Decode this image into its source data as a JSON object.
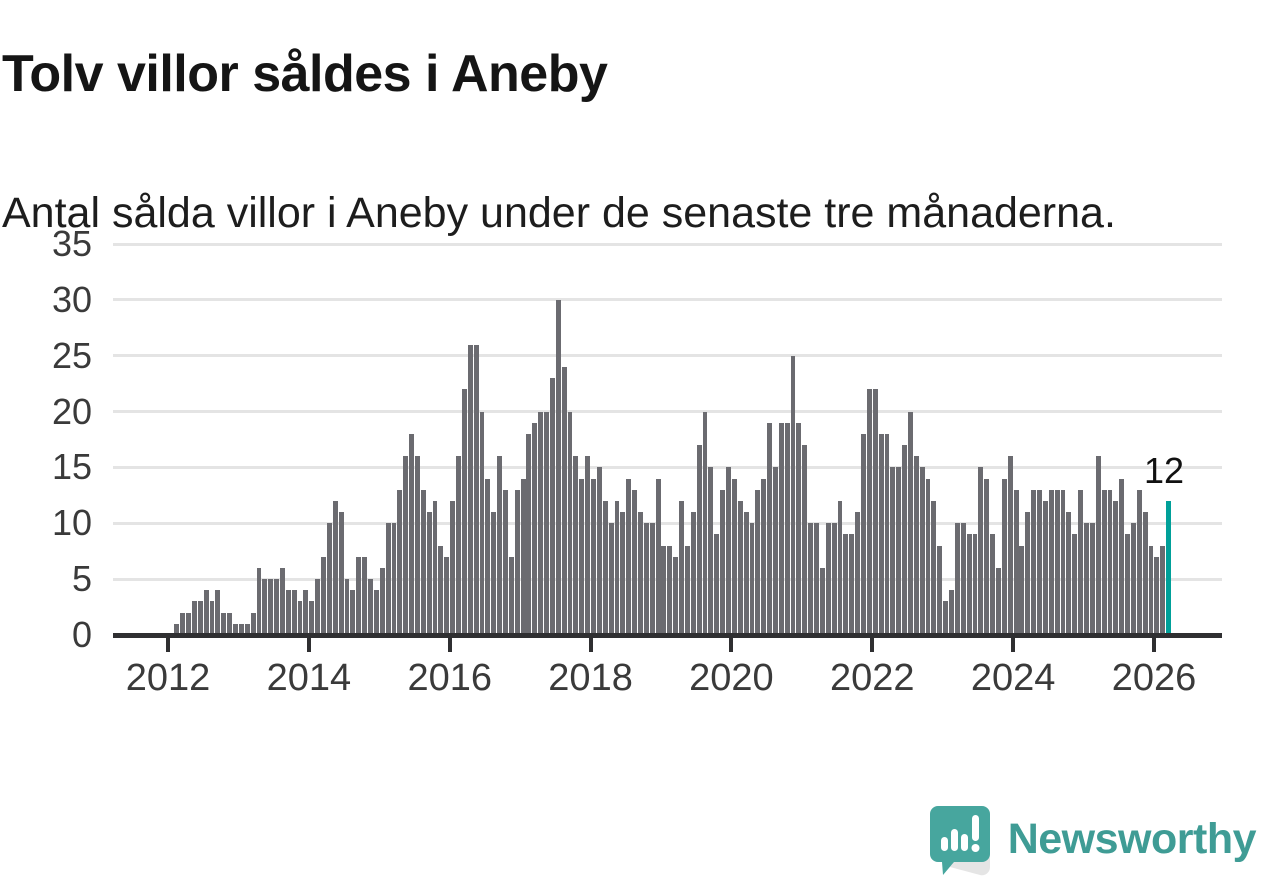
{
  "title": "Tolv villor såldes i Aneby",
  "subtitle": "Antal sålda villor i Aneby under de senaste tre månaderna.",
  "annotation": {
    "label": "12"
  },
  "branding": {
    "name": "Newsworthy",
    "icon": "newsworthy-speech-bubble-chart-icon"
  },
  "colors": {
    "bar": "#6b6b70",
    "highlight": "#00a099",
    "gridline": "#e4e4e4",
    "axis": "#2f2f31",
    "tick_text": "#3a3a3a",
    "brand_teal": "#47a69e",
    "brand_text": "#3f9c95"
  },
  "chart_data": {
    "type": "bar",
    "title": "Tolv villor såldes i Aneby",
    "subtitle": "Antal sålda villor i Aneby under de senaste tre månaderna.",
    "ylabel": "",
    "xlabel": "",
    "ylim": [
      0,
      35
    ],
    "yticks": [
      0,
      5,
      10,
      15,
      20,
      25,
      30,
      35
    ],
    "xticks": [
      2012,
      2014,
      2016,
      2018,
      2020,
      2022,
      2024,
      2026
    ],
    "grid": true,
    "legend": "none",
    "x_start_month": "2012-02",
    "x_end_month": "2026-03",
    "highlight_last_bar": true,
    "highlight_value": 12,
    "values": [
      1,
      2,
      2,
      3,
      3,
      4,
      3,
      4,
      2,
      2,
      1,
      1,
      1,
      2,
      6,
      5,
      5,
      5,
      6,
      4,
      4,
      3,
      4,
      3,
      5,
      7,
      10,
      12,
      11,
      5,
      4,
      7,
      7,
      5,
      4,
      6,
      10,
      10,
      13,
      16,
      18,
      16,
      13,
      11,
      12,
      8,
      7,
      12,
      16,
      22,
      26,
      26,
      20,
      14,
      11,
      16,
      13,
      7,
      13,
      14,
      18,
      19,
      20,
      20,
      23,
      30,
      24,
      20,
      16,
      14,
      16,
      14,
      15,
      12,
      10,
      12,
      11,
      14,
      13,
      11,
      10,
      10,
      14,
      8,
      8,
      7,
      12,
      8,
      11,
      17,
      20,
      15,
      9,
      13,
      15,
      14,
      12,
      11,
      10,
      13,
      14,
      19,
      15,
      19,
      19,
      25,
      19,
      17,
      10,
      10,
      6,
      10,
      10,
      12,
      9,
      9,
      11,
      18,
      22,
      22,
      18,
      18,
      15,
      15,
      17,
      20,
      16,
      15,
      14,
      12,
      8,
      3,
      4,
      10,
      10,
      9,
      9,
      15,
      14,
      9,
      6,
      14,
      16,
      13,
      8,
      11,
      13,
      13,
      12,
      13,
      13,
      13,
      11,
      9,
      13,
      10,
      10,
      16,
      13,
      13,
      12,
      14,
      9,
      10,
      13,
      11,
      8,
      7,
      8,
      12
    ]
  }
}
